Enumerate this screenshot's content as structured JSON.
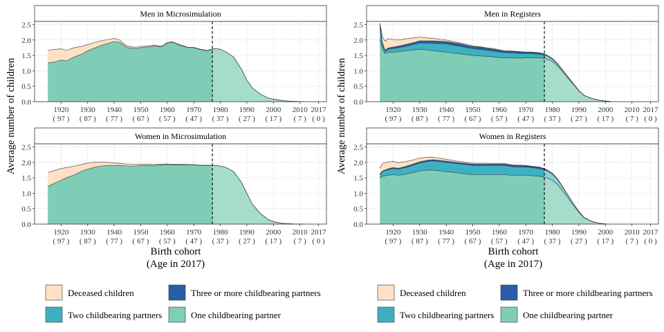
{
  "figure": {
    "y_axis_label": "Average number of children",
    "x_axis_label_line1": "Birth cohort",
    "x_axis_label_line2": "(Age in 2017)"
  },
  "colors": {
    "deceased": "#FDE0C5",
    "three_plus": "#2A5DA8",
    "two": "#3DB1C2",
    "one": "#7FCDB6",
    "one_light": "#A6DCCB",
    "outline": "#333333",
    "grid": "#BDBDBD"
  },
  "legend": {
    "items": [
      {
        "key": "deceased",
        "label": "Deceased children"
      },
      {
        "key": "three_plus",
        "label": "Three or more childbearing partners"
      },
      {
        "key": "two",
        "label": "Two childbearing partners"
      },
      {
        "key": "one",
        "label": "One childbearing partner"
      }
    ]
  },
  "chart_data": [
    {
      "type": "area",
      "title": "Men in Microsimulation",
      "x": [
        1915,
        1918,
        1920,
        1922,
        1925,
        1928,
        1930,
        1933,
        1935,
        1938,
        1940,
        1942,
        1945,
        1948,
        1950,
        1953,
        1955,
        1958,
        1960,
        1962,
        1965,
        1968,
        1970,
        1972,
        1975,
        1977,
        1978,
        1980,
        1982,
        1985,
        1988,
        1990,
        1992,
        1995,
        1998,
        2000,
        2003,
        2005,
        2008,
        2010,
        2012
      ],
      "series": [
        {
          "name": "One childbearing partner",
          "values": [
            1.25,
            1.3,
            1.35,
            1.32,
            1.45,
            1.55,
            1.65,
            1.75,
            1.82,
            1.9,
            1.95,
            1.92,
            1.75,
            1.72,
            1.75,
            1.78,
            1.8,
            1.78,
            1.9,
            1.92,
            1.82,
            1.75,
            1.75,
            1.7,
            1.65,
            1.7,
            1.72,
            1.7,
            1.62,
            1.45,
            1.05,
            0.7,
            0.45,
            0.25,
            0.12,
            0.08,
            0.04,
            0.02,
            0.01,
            0.005,
            0
          ]
        },
        {
          "name": "Two childbearing partners",
          "values": [
            0,
            0,
            0,
            0,
            0,
            0,
            0,
            0,
            0,
            0,
            0,
            0,
            0,
            0,
            0,
            0,
            0,
            0,
            0,
            0,
            0,
            0,
            0,
            0,
            0,
            0,
            0,
            0,
            0,
            0,
            0,
            0,
            0,
            0,
            0,
            0,
            0,
            0,
            0,
            0,
            0
          ]
        },
        {
          "name": "Three or more childbearing partners",
          "values": [
            0,
            0,
            0,
            0,
            0,
            0,
            0,
            0,
            0,
            0,
            0,
            0,
            0,
            0,
            0,
            0,
            0,
            0,
            0,
            0,
            0,
            0,
            0,
            0,
            0,
            0,
            0,
            0,
            0,
            0,
            0,
            0,
            0,
            0,
            0,
            0,
            0,
            0,
            0,
            0,
            0
          ]
        },
        {
          "name": "Deceased children",
          "values": [
            0.42,
            0.4,
            0.36,
            0.35,
            0.3,
            0.25,
            0.2,
            0.18,
            0.15,
            0.12,
            0.1,
            0.08,
            0.05,
            0.04,
            0.04,
            0.03,
            0.03,
            0.02,
            0.02,
            0.02,
            0.02,
            0.01,
            0.01,
            0.01,
            0.01,
            0.01,
            0,
            0,
            0,
            0,
            0,
            0,
            0,
            0,
            0,
            0,
            0,
            0,
            0,
            0,
            0
          ]
        }
      ],
      "cutoff": 1977,
      "xlim": [
        1910,
        2020
      ],
      "ylim": [
        0,
        2.6
      ],
      "xticks": [
        1920,
        1930,
        1940,
        1950,
        1960,
        1970,
        1980,
        1990,
        2000,
        2010,
        2017
      ],
      "xtick_ages": [
        "( 97 )",
        "( 87 )",
        "( 77 )",
        "( 67 )",
        "( 57 )",
        "( 47 )",
        "( 37 )",
        "( 27 )",
        "( 17 )",
        "( 7 )",
        "( 0 )"
      ],
      "yticks": [
        "0.0",
        "0.5",
        "1.0",
        "1.5",
        "2.0",
        "2.5"
      ]
    },
    {
      "type": "area",
      "title": "Men in Registers",
      "x": [
        1915,
        1916,
        1917,
        1918,
        1920,
        1922,
        1925,
        1928,
        1930,
        1933,
        1935,
        1938,
        1940,
        1942,
        1945,
        1948,
        1950,
        1953,
        1955,
        1958,
        1960,
        1962,
        1965,
        1968,
        1970,
        1972,
        1975,
        1977,
        1978,
        1980,
        1982,
        1985,
        1988,
        1990,
        1992,
        1995,
        1998,
        2000,
        2002
      ],
      "series": [
        {
          "name": "One childbearing partner",
          "values": [
            2.0,
            1.7,
            1.55,
            1.6,
            1.6,
            1.62,
            1.65,
            1.68,
            1.7,
            1.68,
            1.65,
            1.62,
            1.6,
            1.58,
            1.55,
            1.52,
            1.5,
            1.48,
            1.47,
            1.45,
            1.43,
            1.42,
            1.42,
            1.41,
            1.42,
            1.43,
            1.42,
            1.4,
            1.38,
            1.3,
            1.15,
            0.85,
            0.55,
            0.35,
            0.2,
            0.1,
            0.04,
            0.02,
            0.01
          ]
        },
        {
          "name": "Two childbearing partners",
          "values": [
            0.4,
            0.15,
            0.08,
            0.1,
            0.12,
            0.13,
            0.15,
            0.18,
            0.2,
            0.22,
            0.24,
            0.26,
            0.27,
            0.26,
            0.25,
            0.23,
            0.22,
            0.21,
            0.2,
            0.19,
            0.18,
            0.17,
            0.16,
            0.15,
            0.14,
            0.13,
            0.12,
            0.11,
            0.1,
            0.08,
            0.06,
            0.04,
            0.02,
            0.01,
            0.005,
            0,
            0,
            0,
            0
          ]
        },
        {
          "name": "Three or more childbearing partners",
          "values": [
            0.1,
            0.05,
            0.03,
            0.04,
            0.05,
            0.05,
            0.06,
            0.06,
            0.07,
            0.07,
            0.08,
            0.08,
            0.08,
            0.08,
            0.08,
            0.07,
            0.07,
            0.07,
            0.06,
            0.06,
            0.06,
            0.05,
            0.05,
            0.05,
            0.04,
            0.04,
            0.04,
            0.03,
            0.03,
            0.02,
            0.02,
            0.01,
            0.005,
            0,
            0,
            0,
            0,
            0,
            0
          ]
        },
        {
          "name": "Deceased children",
          "values": [
            0.05,
            0.2,
            0.3,
            0.3,
            0.25,
            0.2,
            0.18,
            0.15,
            0.12,
            0.1,
            0.08,
            0.06,
            0.05,
            0.04,
            0.03,
            0.03,
            0.02,
            0.02,
            0.02,
            0.02,
            0.01,
            0.01,
            0.01,
            0.01,
            0.01,
            0.01,
            0.01,
            0.01,
            0,
            0,
            0,
            0,
            0,
            0,
            0,
            0,
            0,
            0,
            0
          ]
        }
      ],
      "cutoff": 1977,
      "xlim": [
        1910,
        2020
      ],
      "ylim": [
        0,
        2.6
      ],
      "xticks": [
        1920,
        1930,
        1940,
        1950,
        1960,
        1970,
        1980,
        1990,
        2000,
        2010,
        2017
      ],
      "xtick_ages": [
        "( 97 )",
        "( 87 )",
        "( 77 )",
        "( 67 )",
        "( 57 )",
        "( 47 )",
        "( 37 )",
        "( 27 )",
        "( 17 )",
        "( 7 )",
        "( 0 )"
      ],
      "yticks": [
        "0.0",
        "0.5",
        "1.0",
        "1.5",
        "2.0",
        "2.5"
      ]
    },
    {
      "type": "area",
      "title": "Women in Microsimulation",
      "x": [
        1915,
        1918,
        1920,
        1922,
        1925,
        1928,
        1930,
        1933,
        1935,
        1938,
        1940,
        1942,
        1945,
        1948,
        1950,
        1953,
        1955,
        1958,
        1960,
        1962,
        1965,
        1968,
        1970,
        1972,
        1975,
        1977,
        1978,
        1980,
        1982,
        1985,
        1988,
        1990,
        1992,
        1995,
        1998,
        2000,
        2003,
        2005,
        2008,
        2010,
        2012
      ],
      "series": [
        {
          "name": "One childbearing partner",
          "values": [
            1.22,
            1.35,
            1.42,
            1.5,
            1.6,
            1.72,
            1.78,
            1.85,
            1.88,
            1.9,
            1.9,
            1.9,
            1.88,
            1.88,
            1.9,
            1.9,
            1.9,
            1.92,
            1.93,
            1.92,
            1.92,
            1.92,
            1.92,
            1.9,
            1.9,
            1.9,
            1.9,
            1.88,
            1.84,
            1.7,
            1.35,
            1.0,
            0.65,
            0.35,
            0.15,
            0.08,
            0.03,
            0.015,
            0.005,
            0,
            0
          ]
        },
        {
          "name": "Two childbearing partners",
          "values": [
            0,
            0,
            0,
            0,
            0,
            0,
            0,
            0,
            0,
            0,
            0,
            0,
            0,
            0,
            0,
            0,
            0,
            0,
            0,
            0,
            0,
            0,
            0,
            0,
            0,
            0,
            0,
            0,
            0,
            0,
            0,
            0,
            0,
            0,
            0,
            0,
            0,
            0,
            0,
            0,
            0
          ]
        },
        {
          "name": "Three or more childbearing partners",
          "values": [
            0,
            0,
            0,
            0,
            0,
            0,
            0,
            0,
            0,
            0,
            0,
            0,
            0,
            0,
            0,
            0,
            0,
            0,
            0,
            0,
            0,
            0,
            0,
            0,
            0,
            0,
            0,
            0,
            0,
            0,
            0,
            0,
            0,
            0,
            0,
            0,
            0,
            0,
            0,
            0,
            0
          ]
        },
        {
          "name": "Deceased children",
          "values": [
            0.45,
            0.4,
            0.38,
            0.33,
            0.28,
            0.22,
            0.2,
            0.16,
            0.13,
            0.1,
            0.08,
            0.07,
            0.06,
            0.05,
            0.04,
            0.04,
            0.03,
            0.02,
            0.02,
            0.02,
            0.02,
            0.01,
            0.01,
            0.01,
            0.01,
            0.01,
            0,
            0,
            0,
            0,
            0,
            0,
            0,
            0,
            0,
            0,
            0,
            0,
            0,
            0,
            0
          ]
        }
      ],
      "cutoff": 1977,
      "xlim": [
        1910,
        2020
      ],
      "ylim": [
        0,
        2.6
      ],
      "xticks": [
        1920,
        1930,
        1940,
        1950,
        1960,
        1970,
        1980,
        1990,
        2000,
        2010,
        2017
      ],
      "xtick_ages": [
        "( 97 )",
        "( 87 )",
        "( 77 )",
        "( 67 )",
        "( 57 )",
        "( 47 )",
        "( 37 )",
        "( 27 )",
        "( 17 )",
        "( 7 )",
        "( 0 )"
      ],
      "yticks": [
        "0.0",
        "0.5",
        "1.0",
        "1.5",
        "2.0",
        "2.5"
      ]
    },
    {
      "type": "area",
      "title": "Women in Registers",
      "x": [
        1915,
        1916,
        1918,
        1920,
        1922,
        1925,
        1928,
        1930,
        1933,
        1935,
        1938,
        1940,
        1942,
        1945,
        1948,
        1950,
        1953,
        1955,
        1958,
        1960,
        1962,
        1965,
        1968,
        1970,
        1972,
        1975,
        1977,
        1978,
        1980,
        1982,
        1985,
        1988,
        1990,
        1992,
        1995,
        1998,
        2000
      ],
      "series": [
        {
          "name": "One childbearing partner",
          "values": [
            1.5,
            1.55,
            1.58,
            1.6,
            1.58,
            1.62,
            1.68,
            1.72,
            1.75,
            1.75,
            1.72,
            1.7,
            1.68,
            1.65,
            1.62,
            1.6,
            1.6,
            1.6,
            1.6,
            1.6,
            1.6,
            1.58,
            1.58,
            1.58,
            1.57,
            1.55,
            1.52,
            1.5,
            1.42,
            1.28,
            0.95,
            0.6,
            0.38,
            0.2,
            0.08,
            0.02,
            0.01
          ]
        },
        {
          "name": "Two childbearing partners",
          "values": [
            0.1,
            0.15,
            0.18,
            0.2,
            0.2,
            0.22,
            0.24,
            0.26,
            0.28,
            0.3,
            0.3,
            0.3,
            0.3,
            0.3,
            0.3,
            0.3,
            0.3,
            0.3,
            0.3,
            0.3,
            0.3,
            0.28,
            0.27,
            0.27,
            0.26,
            0.25,
            0.24,
            0.22,
            0.2,
            0.16,
            0.1,
            0.05,
            0.03,
            0.01,
            0.005,
            0,
            0
          ]
        },
        {
          "name": "Three or more childbearing partners",
          "values": [
            0.02,
            0.02,
            0.03,
            0.03,
            0.03,
            0.04,
            0.04,
            0.04,
            0.04,
            0.04,
            0.04,
            0.04,
            0.04,
            0.04,
            0.04,
            0.04,
            0.04,
            0.04,
            0.04,
            0.04,
            0.04,
            0.04,
            0.04,
            0.04,
            0.04,
            0.04,
            0.03,
            0.03,
            0.03,
            0.02,
            0.01,
            0.005,
            0,
            0,
            0,
            0,
            0
          ]
        },
        {
          "name": "Deceased children",
          "values": [
            0.2,
            0.25,
            0.22,
            0.2,
            0.18,
            0.15,
            0.13,
            0.12,
            0.1,
            0.08,
            0.07,
            0.06,
            0.05,
            0.04,
            0.04,
            0.03,
            0.03,
            0.03,
            0.02,
            0.02,
            0.02,
            0.02,
            0.02,
            0.01,
            0.01,
            0.01,
            0.01,
            0.01,
            0,
            0,
            0,
            0,
            0,
            0,
            0,
            0,
            0
          ]
        }
      ],
      "cutoff": 1977,
      "xlim": [
        1910,
        2020
      ],
      "ylim": [
        0,
        2.6
      ],
      "xticks": [
        1920,
        1930,
        1940,
        1950,
        1960,
        1970,
        1980,
        1990,
        2000,
        2010,
        2017
      ],
      "xtick_ages": [
        "( 97 )",
        "( 87 )",
        "( 77 )",
        "( 67 )",
        "( 57 )",
        "( 47 )",
        "( 37 )",
        "( 27 )",
        "( 17 )",
        "( 7 )",
        "( 0 )"
      ],
      "yticks": [
        "0.0",
        "0.5",
        "1.0",
        "1.5",
        "2.0",
        "2.5"
      ]
    }
  ]
}
